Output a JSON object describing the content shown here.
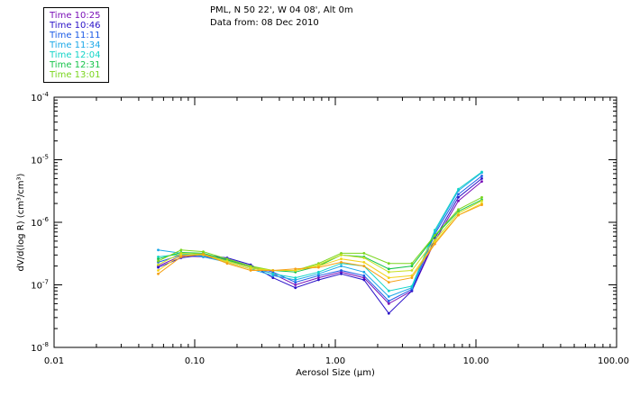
{
  "header": {
    "location": "PML, N 50 22', W 04 08', Alt 0m",
    "date_line": "Data from: 08 Dec 2010"
  },
  "chart_data": {
    "type": "line",
    "title": "",
    "xlabel": "Aerosol Size (μm)",
    "ylabel": "dV/d(log R) (cm³/cm³)",
    "xscale": "log",
    "yscale": "log",
    "xlim": [
      0.01,
      100.0
    ],
    "ylim": [
      1e-08,
      0.0001
    ],
    "x_ticks": [
      {
        "value": 0.01,
        "label": "0.01"
      },
      {
        "value": 0.1,
        "label": "0.10"
      },
      {
        "value": 1.0,
        "label": "1.00"
      },
      {
        "value": 10.0,
        "label": "10.00"
      },
      {
        "value": 100.0,
        "label": "100.00"
      }
    ],
    "y_ticks": [
      {
        "value": 1e-08,
        "mantissa": "10",
        "exponent": "-8"
      },
      {
        "value": 1e-07,
        "mantissa": "10",
        "exponent": "-7"
      },
      {
        "value": 1e-06,
        "mantissa": "10",
        "exponent": "-6"
      },
      {
        "value": 1e-05,
        "mantissa": "10",
        "exponent": "-5"
      },
      {
        "value": 0.0001,
        "mantissa": "10",
        "exponent": "-4"
      }
    ],
    "x": [
      0.055,
      0.08,
      0.115,
      0.17,
      0.25,
      0.36,
      0.52,
      0.76,
      1.1,
      1.6,
      2.4,
      3.5,
      5.1,
      7.5,
      11.0
    ],
    "series": [
      {
        "name": "Time 10:25",
        "color": "#7a10b8",
        "values": [
          2e-07,
          2.9e-07,
          2.8e-07,
          2.5e-07,
          2e-07,
          1.5e-07,
          1e-07,
          1.3e-07,
          1.6e-07,
          1.3e-07,
          5e-08,
          8e-08,
          5e-07,
          2.2e-06,
          4.5e-06
        ]
      },
      {
        "name": "Time 10:46",
        "color": "#2a12c8",
        "values": [
          1.9e-07,
          2.7e-07,
          3e-07,
          2.7e-07,
          2.1e-07,
          1.3e-07,
          9e-08,
          1.2e-07,
          1.5e-07,
          1.2e-07,
          3.5e-08,
          8e-08,
          5.5e-07,
          2.5e-06,
          5e-06
        ]
      },
      {
        "name": "Time 11:11",
        "color": "#1a5ae6",
        "values": [
          2.3e-07,
          3e-07,
          2.9e-07,
          2.6e-07,
          2e-07,
          1.6e-07,
          1.1e-07,
          1.4e-07,
          1.7e-07,
          1.4e-07,
          5.5e-08,
          8.5e-08,
          6.5e-07,
          2.8e-06,
          5.5e-06
        ]
      },
      {
        "name": "Time 11:34",
        "color": "#1aa8e8",
        "values": [
          3.6e-07,
          3.2e-07,
          2.8e-07,
          2.3e-07,
          1.8e-07,
          1.4e-07,
          1.2e-07,
          1.5e-07,
          2e-07,
          1.6e-07,
          6.5e-08,
          9e-08,
          7e-07,
          3.2e-06,
          6.2e-06
        ]
      },
      {
        "name": "Time 12:04",
        "color": "#12d4c8",
        "values": [
          2.8e-07,
          3.1e-07,
          3e-07,
          2.4e-07,
          1.9e-07,
          1.5e-07,
          1.3e-07,
          1.6e-07,
          2.2e-07,
          2e-07,
          8e-08,
          9.5e-08,
          7.5e-07,
          3.4e-06,
          6.4e-06
        ]
      },
      {
        "name": "Time 12:31",
        "color": "#16c44a",
        "values": [
          2.6e-07,
          3.3e-07,
          3.2e-07,
          2.5e-07,
          1.9e-07,
          1.7e-07,
          1.6e-07,
          2e-07,
          3e-07,
          2.8e-07,
          1.8e-07,
          2e-07,
          6e-07,
          1.5e-06,
          2.3e-06
        ]
      },
      {
        "name": "Time 13:01",
        "color": "#7ad61e",
        "values": [
          2.4e-07,
          3.6e-07,
          3.4e-07,
          2.6e-07,
          2e-07,
          1.7e-07,
          1.7e-07,
          2.2e-07,
          3.2e-07,
          3.2e-07,
          2.2e-07,
          2.2e-07,
          6.2e-07,
          1.6e-06,
          2.5e-06
        ]
      },
      {
        "name": "",
        "color": "#c8e020",
        "values": [
          2.1e-07,
          3.2e-07,
          3.1e-07,
          2.4e-07,
          1.9e-07,
          1.7e-07,
          1.7e-07,
          2.1e-07,
          3e-07,
          2.7e-07,
          1.6e-07,
          1.7e-07,
          5.2e-07,
          1.4e-06,
          2.2e-06
        ]
      },
      {
        "name": "",
        "color": "#f2d21a",
        "values": [
          1.7e-07,
          3e-07,
          3e-07,
          2.3e-07,
          1.8e-07,
          1.7e-07,
          1.7e-07,
          2e-07,
          2.6e-07,
          2.3e-07,
          1.3e-07,
          1.4e-07,
          4.8e-07,
          1.3e-06,
          2e-06
        ]
      },
      {
        "name": "",
        "color": "#f5a014",
        "values": [
          1.5e-07,
          2.8e-07,
          3.1e-07,
          2.2e-07,
          1.7e-07,
          1.7e-07,
          1.8e-07,
          1.9e-07,
          2.3e-07,
          2e-07,
          1.1e-07,
          1.3e-07,
          4.5e-07,
          1.3e-06,
          1.9e-06
        ]
      }
    ]
  }
}
